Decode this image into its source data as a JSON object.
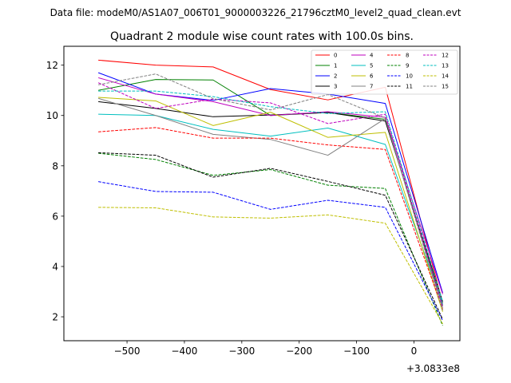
{
  "figure": {
    "suptitle": "Data file: modeM0/AS1A07_006T01_9000003226_21796cztM0_level2_quad_clean.evt",
    "title": "Quadrant 2 module wise count rates with 100.0s bins.",
    "x_offset_label": "+3.0833e8"
  },
  "chart_data": {
    "type": "line",
    "title": "Quadrant 2 module wise count rates with 100.0s bins.",
    "xlabel": "",
    "ylabel": "",
    "x_offset": "+3.0833e8",
    "xlim": [
      -610,
      80
    ],
    "ylim": [
      1.05,
      12.75
    ],
    "xticks": [
      -500,
      -400,
      -300,
      -200,
      -100,
      0
    ],
    "xtick_labels": [
      "−500",
      "−400",
      "−300",
      "−200",
      "−100",
      "0"
    ],
    "yticks": [
      2,
      4,
      6,
      8,
      10,
      12
    ],
    "ytick_labels": [
      "2",
      "4",
      "6",
      "8",
      "10",
      "12"
    ],
    "grid": false,
    "legend_position": "top-right",
    "legend_columns": 4,
    "x": [
      -550,
      -450,
      -350,
      -250,
      -150,
      -50,
      50
    ],
    "series": [
      {
        "name": "0",
        "color": "#ff0000",
        "dash": "solid",
        "values": [
          12.2,
          12.0,
          11.93,
          11.03,
          10.62,
          11.12,
          2.55
        ]
      },
      {
        "name": "1",
        "color": "#008000",
        "dash": "solid",
        "values": [
          11.0,
          11.43,
          11.41,
          10.0,
          10.12,
          9.85,
          2.45
        ]
      },
      {
        "name": "2",
        "color": "#0000ff",
        "dash": "solid",
        "values": [
          11.7,
          10.85,
          10.6,
          11.07,
          10.85,
          10.48,
          2.95
        ]
      },
      {
        "name": "3",
        "color": "#000000",
        "dash": "solid",
        "values": [
          10.55,
          10.28,
          9.95,
          10.02,
          10.12,
          9.78,
          2.6
        ]
      },
      {
        "name": "4",
        "color": "#bf00bf",
        "dash": "solid",
        "values": [
          11.5,
          10.85,
          10.55,
          10.0,
          10.15,
          9.93,
          2.9
        ]
      },
      {
        "name": "5",
        "color": "#00bfbf",
        "dash": "solid",
        "values": [
          10.05,
          10.0,
          9.45,
          9.18,
          9.5,
          8.85,
          2.5
        ]
      },
      {
        "name": "6",
        "color": "#bfbf00",
        "dash": "solid",
        "values": [
          10.72,
          10.58,
          9.6,
          10.13,
          9.13,
          9.33,
          2.2
        ]
      },
      {
        "name": "7",
        "color": "#808080",
        "dash": "solid",
        "values": [
          10.68,
          10.0,
          9.25,
          9.05,
          8.42,
          9.88,
          2.35
        ]
      },
      {
        "name": "8",
        "color": "#ff0000",
        "dash": "dashed",
        "values": [
          9.35,
          9.52,
          9.1,
          9.1,
          8.83,
          8.65,
          2.3
        ]
      },
      {
        "name": "9",
        "color": "#008000",
        "dash": "dashed",
        "values": [
          8.5,
          8.25,
          7.62,
          7.85,
          7.23,
          7.1,
          1.65
        ]
      },
      {
        "name": "10",
        "color": "#0000ff",
        "dash": "dashed",
        "values": [
          7.37,
          6.98,
          6.95,
          6.27,
          6.63,
          6.35,
          1.85
        ]
      },
      {
        "name": "11",
        "color": "#000000",
        "dash": "dashed",
        "values": [
          8.52,
          8.42,
          7.55,
          7.9,
          7.38,
          6.83,
          1.9
        ]
      },
      {
        "name": "12",
        "color": "#bf00bf",
        "dash": "dashed",
        "values": [
          11.3,
          10.28,
          10.65,
          10.5,
          9.68,
          10.05,
          2.4
        ]
      },
      {
        "name": "13",
        "color": "#00bfbf",
        "dash": "dashed",
        "values": [
          10.97,
          10.97,
          10.75,
          10.35,
          10.08,
          10.15,
          2.6
        ]
      },
      {
        "name": "14",
        "color": "#bfbf00",
        "dash": "dashed",
        "values": [
          6.35,
          6.33,
          5.97,
          5.92,
          6.05,
          5.72,
          1.72
        ]
      },
      {
        "name": "15",
        "color": "#808080",
        "dash": "dashed",
        "values": [
          11.22,
          11.65,
          10.67,
          10.22,
          10.83,
          9.9,
          2.25
        ]
      }
    ]
  }
}
